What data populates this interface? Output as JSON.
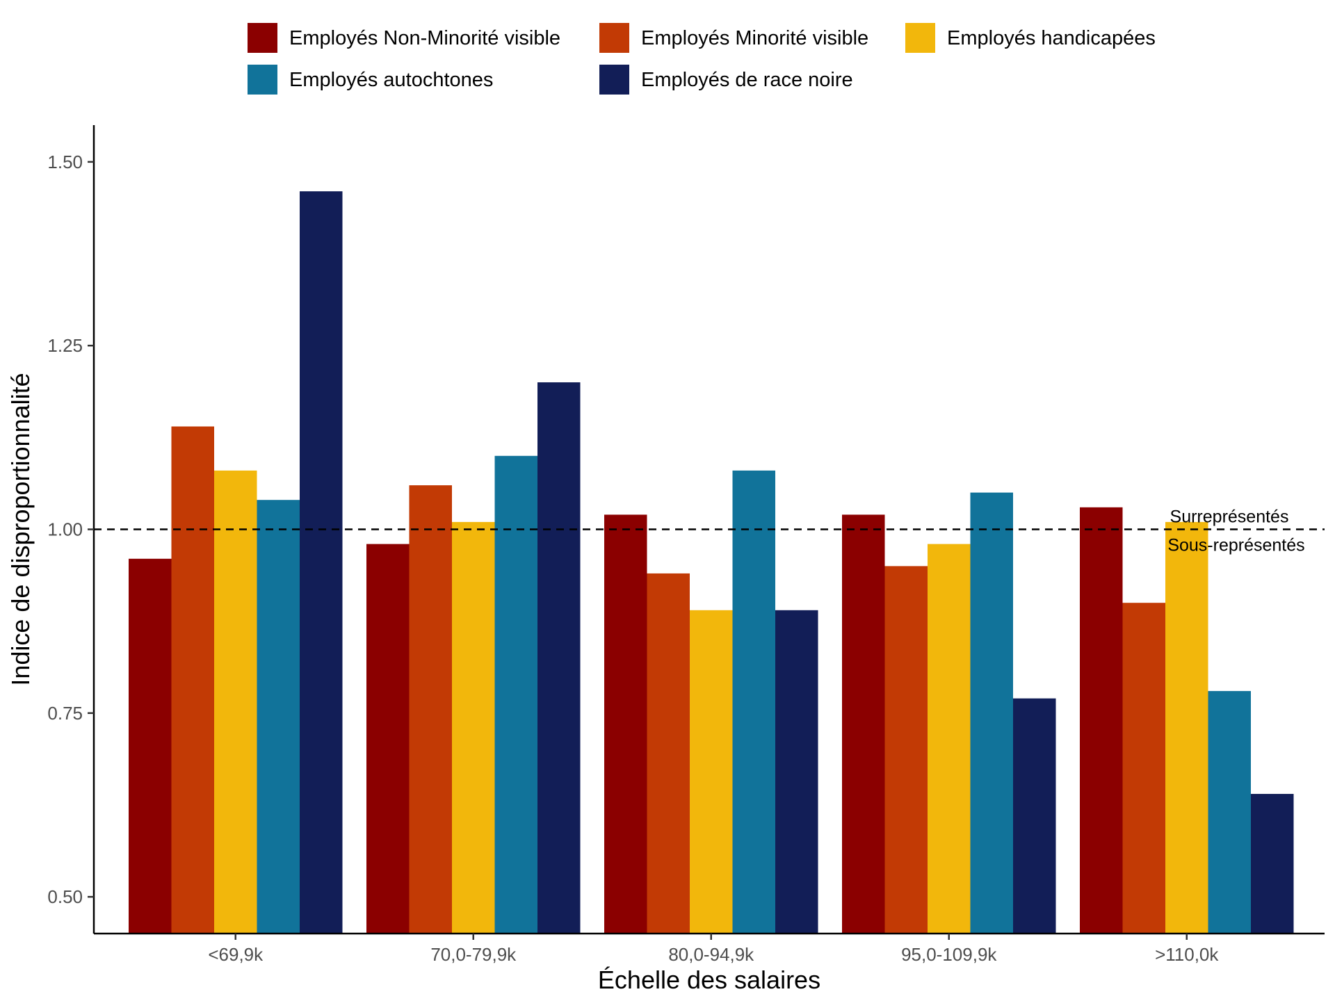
{
  "chart_data": {
    "type": "bar",
    "xlabel": "Échelle des salaires",
    "ylabel": "Indice de disproportionnalité",
    "categories": [
      "<69,9k",
      "70,0-79,9k",
      "80,0-94,9k",
      "95,0-109,9k",
      ">110,0k"
    ],
    "ylim": [
      0.45,
      1.55
    ],
    "yticks": [
      0.5,
      0.75,
      1.0,
      1.25,
      1.5
    ],
    "ytick_labels": [
      "0.50",
      "0.75",
      "1.00",
      "1.25",
      "1.50"
    ],
    "series": [
      {
        "name": "Employés Non-Minorité visible",
        "color": "#8B0000",
        "values": [
          0.96,
          0.98,
          1.02,
          1.02,
          1.03
        ]
      },
      {
        "name": "Employés Minorité visible",
        "color": "#C23A05",
        "values": [
          1.14,
          1.06,
          0.94,
          0.95,
          0.9
        ]
      },
      {
        "name": "Employés handicapées",
        "color": "#F2B70C",
        "values": [
          1.08,
          1.01,
          0.89,
          0.98,
          1.01
        ]
      },
      {
        "name": "Employés autochtones",
        "color": "#11739A",
        "values": [
          1.04,
          1.1,
          1.08,
          1.05,
          0.78
        ]
      },
      {
        "name": "Employés de race noire",
        "color": "#121E57",
        "values": [
          1.46,
          1.2,
          0.89,
          0.77,
          0.64
        ]
      }
    ],
    "reference_line": {
      "value": 1.0,
      "style": "dashed"
    },
    "annotations": {
      "above": "Surreprésentés",
      "below": "Sous-représentés"
    },
    "legend_position": "top",
    "grid": false
  }
}
